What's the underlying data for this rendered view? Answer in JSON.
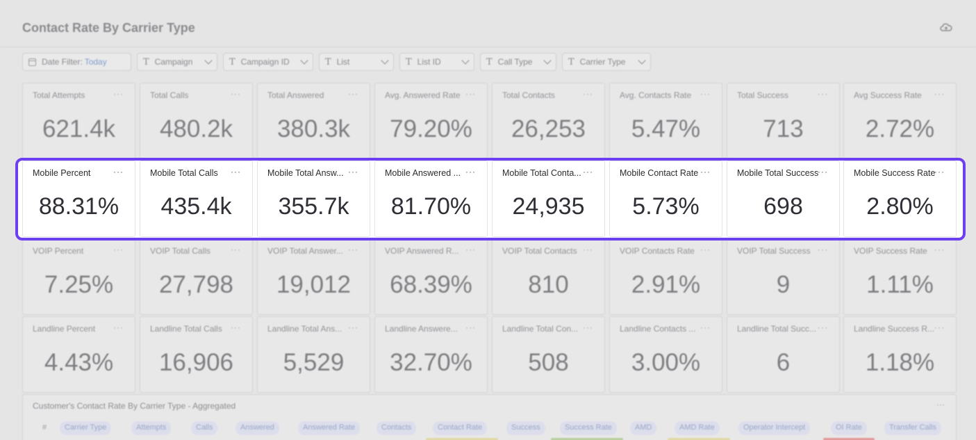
{
  "header": {
    "title": "Contact Rate By Carrier Type"
  },
  "filters": {
    "date_label": "Date Filter:",
    "date_value": "Today",
    "campaign": "Campaign",
    "campaign_id": "Campaign ID",
    "list": "List",
    "list_id": "List ID",
    "call_type": "Call Type",
    "carrier_type": "Carrier Type"
  },
  "rows": {
    "total": [
      {
        "label": "Total Attempts",
        "value": "621.4k"
      },
      {
        "label": "Total Calls",
        "value": "480.2k"
      },
      {
        "label": "Total Answered",
        "value": "380.3k"
      },
      {
        "label": "Avg. Answered Rate",
        "value": "79.20%"
      },
      {
        "label": "Total Contacts",
        "value": "26,253"
      },
      {
        "label": "Avg. Contacts Rate",
        "value": "5.47%"
      },
      {
        "label": "Total Success",
        "value": "713"
      },
      {
        "label": "Avg Success Rate",
        "value": "2.72%"
      }
    ],
    "mobile": [
      {
        "label": "Mobile Percent",
        "value": "88.31%"
      },
      {
        "label": "Mobile Total Calls",
        "value": "435.4k"
      },
      {
        "label": "Mobile Total Answ...",
        "value": "355.7k"
      },
      {
        "label": "Mobile Answered ...",
        "value": "81.70%"
      },
      {
        "label": "Mobile Total Conta...",
        "value": "24,935"
      },
      {
        "label": "Mobile Contact Rate",
        "value": "5.73%"
      },
      {
        "label": "Mobile Total Success",
        "value": "698"
      },
      {
        "label": "Mobile Success Rate",
        "value": "2.80%"
      }
    ],
    "voip": [
      {
        "label": "VOIP Percent",
        "value": "7.25%"
      },
      {
        "label": "VOIP Total Calls",
        "value": "27,798"
      },
      {
        "label": "VOIP Total Answer...",
        "value": "19,012"
      },
      {
        "label": "VOIP Answered R...",
        "value": "68.39%"
      },
      {
        "label": "VOIP Total Contacts",
        "value": "810"
      },
      {
        "label": "VOIP Contacts Rate",
        "value": "2.91%"
      },
      {
        "label": "VOIP Total Success",
        "value": "9"
      },
      {
        "label": "VOIP Success Rate",
        "value": "1.11%"
      }
    ],
    "landline": [
      {
        "label": "Landline Percent",
        "value": "4.43%"
      },
      {
        "label": "Landline Total Calls",
        "value": "16,906"
      },
      {
        "label": "Landline Total Ans...",
        "value": "5,529"
      },
      {
        "label": "Landline Answere...",
        "value": "32.70%"
      },
      {
        "label": "Landline Total Con...",
        "value": "508"
      },
      {
        "label": "Landline Contacts ...",
        "value": "3.00%"
      },
      {
        "label": "Landline Total Succ...",
        "value": "6"
      },
      {
        "label": "Landline Success R...",
        "value": "1.18%"
      }
    ]
  },
  "card_menu": "···",
  "table": {
    "title": "Customer's Contact Rate By Carrier Type - Aggregated",
    "hash": "#",
    "columns": [
      "Carrier Type",
      "Attempts",
      "Calls",
      "Answered",
      "Answered Rate",
      "Contacts",
      "Contact Rate",
      "Success",
      "Success Rate",
      "AMD",
      "AMD Rate",
      "Operator Intercept",
      "OI Rate",
      "Transfer Calls"
    ]
  },
  "colors": {
    "highlight": "#6c3ff1"
  }
}
